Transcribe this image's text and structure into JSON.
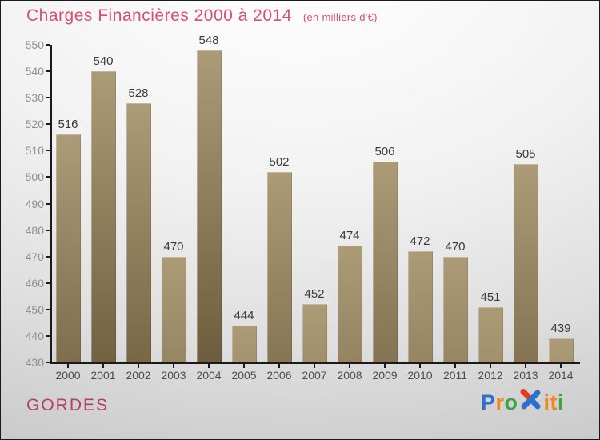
{
  "header": {
    "title": "Charges Financières 2000 à 2014",
    "subtitle": "(en milliers d'€)",
    "title_color": "#d6516f"
  },
  "chart_data": {
    "type": "bar",
    "title": "Charges Financières 2000 à 2014",
    "subtitle": "(en milliers d'€)",
    "categories": [
      "2000",
      "2001",
      "2002",
      "2003",
      "2004",
      "2005",
      "2006",
      "2007",
      "2008",
      "2009",
      "2010",
      "2011",
      "2012",
      "2013",
      "2014"
    ],
    "values": [
      516,
      540,
      528,
      470,
      548,
      444,
      502,
      452,
      474,
      506,
      472,
      470,
      451,
      505,
      439
    ],
    "ylim": [
      430,
      550
    ],
    "ytick_step": 10,
    "grid": false,
    "legend": false,
    "bar_color_top": "#ac9b77",
    "bar_color_bottom": "#6c5c3d",
    "axis_color": "#1a1a1a",
    "ytick_label_color": "#8f8f8f",
    "xtick_label_color": "#4d4d4d",
    "value_label_color": "#3a3a3a"
  },
  "footer": {
    "place": "GORDES",
    "place_color": "#b63d63",
    "logo": {
      "name": "Proxiti",
      "letters_pre": [
        {
          "ch": "P",
          "color": "#2d6fd1"
        },
        {
          "ch": "r",
          "color": "#f2861c"
        },
        {
          "ch": "o",
          "color": "#3ba547"
        }
      ],
      "x_color": "#2d6fd1",
      "x_accent_color": "#e23a1c",
      "letters_post": [
        {
          "ch": "i",
          "color": "#f2861c"
        },
        {
          "ch": "t",
          "color": "#f2861c"
        },
        {
          "ch": "i",
          "color": "#3ba547"
        }
      ]
    }
  }
}
